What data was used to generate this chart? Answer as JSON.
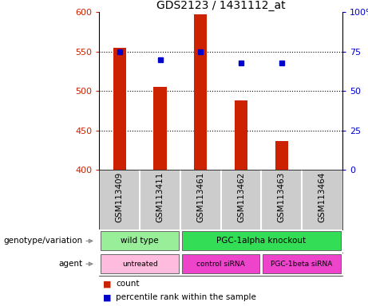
{
  "title": "GDS2123 / 1431112_at",
  "samples": [
    "GSM113409",
    "GSM113411",
    "GSM113461",
    "GSM113462",
    "GSM113463",
    "GSM113464"
  ],
  "bar_values": [
    555,
    505,
    597,
    488,
    437,
    400
  ],
  "bar_base": 400,
  "percentile_values": [
    75,
    70,
    75,
    68,
    68,
    null
  ],
  "bar_color": "#CC2200",
  "dot_color": "#0000CC",
  "ylim_left": [
    400,
    600
  ],
  "ylim_right": [
    0,
    100
  ],
  "yticks_left": [
    400,
    450,
    500,
    550,
    600
  ],
  "yticks_right": [
    0,
    25,
    50,
    75,
    100
  ],
  "ytick_labels_right": [
    "0",
    "25",
    "50",
    "75",
    "100%"
  ],
  "hgrid_values": [
    550,
    500,
    450
  ],
  "genotype_groups": [
    {
      "label": "wild type",
      "start": 0,
      "end": 2,
      "color": "#99EE99"
    },
    {
      "label": "PGC-1alpha knockout",
      "start": 2,
      "end": 6,
      "color": "#33DD55"
    }
  ],
  "agent_groups": [
    {
      "label": "untreated",
      "start": 0,
      "end": 2,
      "color": "#FFBBDD"
    },
    {
      "label": "control siRNA",
      "start": 2,
      "end": 4,
      "color": "#EE44CC"
    },
    {
      "label": "PGC-1beta siRNA",
      "start": 4,
      "end": 6,
      "color": "#EE44CC"
    }
  ],
  "genotype_label": "genotype/variation",
  "agent_label": "agent",
  "legend_count": "count",
  "legend_percentile": "percentile rank within the sample",
  "label_bg": "#CCCCCC",
  "bar_width": 0.32
}
